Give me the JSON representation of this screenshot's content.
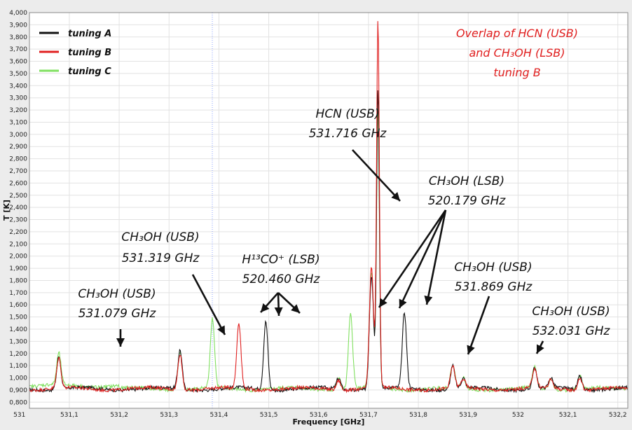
{
  "chart_data": {
    "type": "line",
    "xlabel": "Frequency [GHz]",
    "ylabel": "T [K]",
    "xlim": [
      531.02,
      532.22
    ],
    "ylim": [
      750,
      4000
    ],
    "grid": true,
    "legend_position": "top-left",
    "x_ticks": [
      "531",
      "531,1",
      "531,2",
      "531,3",
      "531,4",
      "531,5",
      "531,6",
      "531,7",
      "531,8",
      "531,9",
      "532",
      "532,1",
      "532,2"
    ],
    "y_ticks": [
      "0,800",
      "0,900",
      "1,000",
      "1,100",
      "1,200",
      "1,300",
      "1,400",
      "1,500",
      "1,600",
      "1,700",
      "1,800",
      "1,900",
      "2,000",
      "2,100",
      "2,200",
      "2,300",
      "2,400",
      "2,500",
      "2,600",
      "2,700",
      "2,800",
      "2,900",
      "3,000",
      "3,100",
      "3,200",
      "3,300",
      "3,400",
      "3,500",
      "3,600",
      "3,700",
      "3,800",
      "3,900",
      "4,000"
    ],
    "baseline": 910,
    "series": [
      {
        "name": "tuning A",
        "color": "#111111",
        "peaks": [
          {
            "x": 531.079,
            "y": 1180
          },
          {
            "x": 531.322,
            "y": 1230
          },
          {
            "x": 531.494,
            "y": 1470
          },
          {
            "x": 531.64,
            "y": 1000
          },
          {
            "x": 531.706,
            "y": 1850
          },
          {
            "x": 531.719,
            "y": 3380
          },
          {
            "x": 531.772,
            "y": 1530
          },
          {
            "x": 531.869,
            "y": 1100
          },
          {
            "x": 531.89,
            "y": 990
          },
          {
            "x": 532.033,
            "y": 1080
          },
          {
            "x": 532.066,
            "y": 990
          },
          {
            "x": 532.124,
            "y": 1020
          }
        ]
      },
      {
        "name": "tuning B",
        "color": "#e02020",
        "peaks": [
          {
            "x": 531.079,
            "y": 1160
          },
          {
            "x": 531.322,
            "y": 1210
          },
          {
            "x": 531.44,
            "y": 1450
          },
          {
            "x": 531.64,
            "y": 990
          },
          {
            "x": 531.706,
            "y": 1900
          },
          {
            "x": 531.719,
            "y": 3920
          },
          {
            "x": 531.869,
            "y": 1090
          },
          {
            "x": 531.89,
            "y": 980
          },
          {
            "x": 532.033,
            "y": 1070
          },
          {
            "x": 532.066,
            "y": 980
          },
          {
            "x": 532.124,
            "y": 1010
          }
        ]
      },
      {
        "name": "tuning C",
        "color": "#80e060",
        "peaks": [
          {
            "x": 531.079,
            "y": 1170
          },
          {
            "x": 531.322,
            "y": 1220
          },
          {
            "x": 531.387,
            "y": 1480
          },
          {
            "x": 531.64,
            "y": 1010
          },
          {
            "x": 531.664,
            "y": 1520
          },
          {
            "x": 531.706,
            "y": 1850
          },
          {
            "x": 531.719,
            "y": 3200
          },
          {
            "x": 531.869,
            "y": 1100
          },
          {
            "x": 531.89,
            "y": 1000
          },
          {
            "x": 532.033,
            "y": 1080
          },
          {
            "x": 532.066,
            "y": 1000
          },
          {
            "x": 532.124,
            "y": 1020
          }
        ]
      }
    ],
    "annotations": [
      {
        "id": "ch3oh-531079",
        "l1": "CH₃OH (USB)",
        "l2": "531.079 GHz",
        "color": "#111111"
      },
      {
        "id": "ch3oh-531319",
        "l1": "CH₃OH (USB)",
        "l2": "531.319 GHz",
        "color": "#111111"
      },
      {
        "id": "h13co",
        "l1": "H¹³CO⁺ (LSB)",
        "l2": "520.460 GHz",
        "color": "#111111"
      },
      {
        "id": "hcn",
        "l1": "HCN (USB)",
        "l2": "531.716 GHz",
        "color": "#111111"
      },
      {
        "id": "ch3oh-520179",
        "l1": "CH₃OH (LSB)",
        "l2": "520.179 GHz",
        "color": "#111111"
      },
      {
        "id": "ch3oh-531869",
        "l1": "CH₃OH (USB)",
        "l2": "531.869 GHz",
        "color": "#111111"
      },
      {
        "id": "ch3oh-532031",
        "l1": "CH₃OH (USB)",
        "l2": "532.031 GHz",
        "color": "#111111"
      },
      {
        "id": "overlap",
        "l1": "Overlap of HCN (USB)",
        "l2": "and CH₃OH (LSB)",
        "l3": "tuning B",
        "color": "#e02020"
      }
    ]
  }
}
